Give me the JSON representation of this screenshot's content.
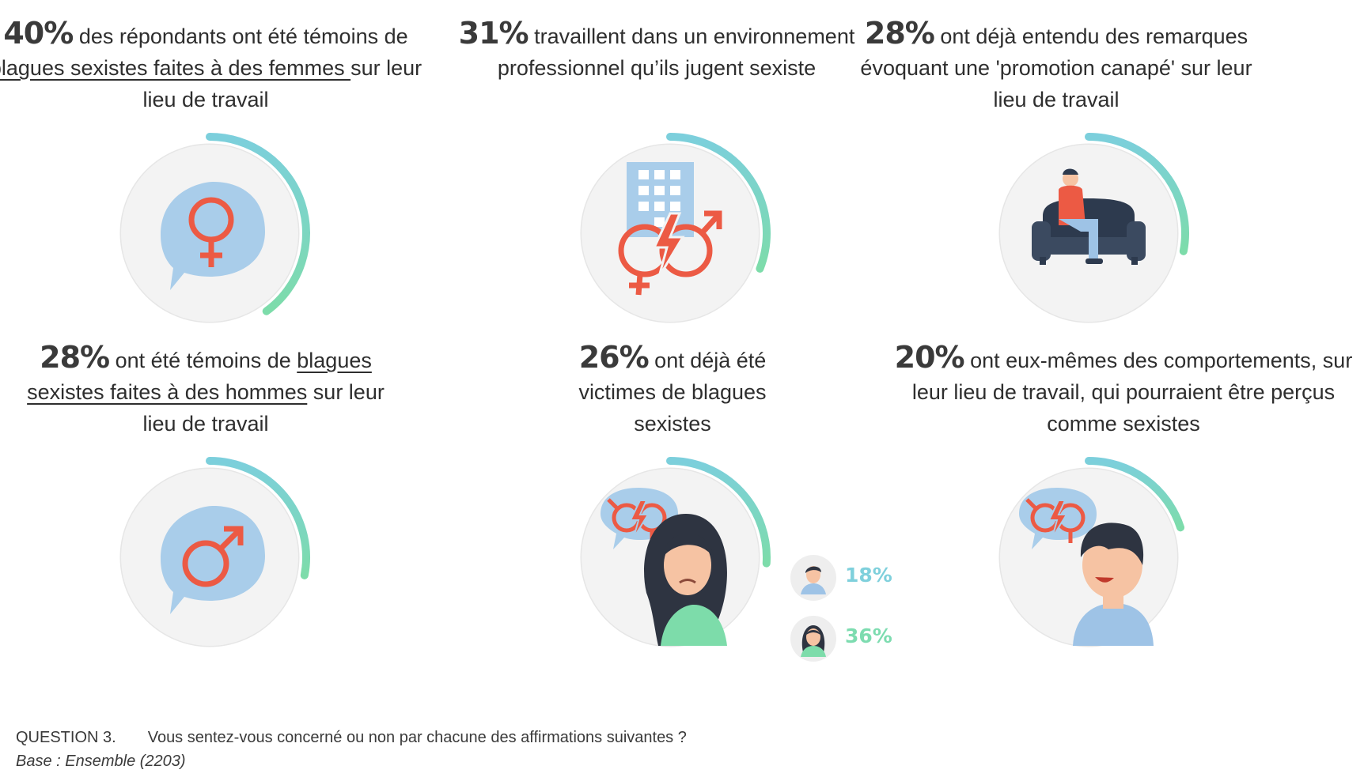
{
  "chart_data": {
    "type": "progress-ring",
    "items": [
      {
        "value": 40,
        "percent_label": "40%",
        "text_parts": [
          " des répondants ont été témoins de ",
          "blagues sexistes faites à des femmes ",
          "sur leur lieu de travail"
        ],
        "icon": "female-symbol-speech-bubble-icon"
      },
      {
        "value": 31,
        "percent_label": "31%",
        "text_parts": [
          " travaillent dans un environnement professionnel qu’ils jugent sexiste"
        ],
        "icon": "building-gender-conflict-icon"
      },
      {
        "value": 28,
        "percent_label": "28%",
        "text_parts": [
          " ont déjà entendu des remarques évoquant une 'promotion canapé' sur leur lieu de travail"
        ],
        "icon": "man-on-couch-icon"
      },
      {
        "value": 28,
        "percent_label": "28%",
        "text_parts": [
          " ont été témoins de ",
          "blagues sexistes faites à des hommes",
          " sur leur lieu de travail"
        ],
        "icon": "male-symbol-speech-bubble-icon"
      },
      {
        "value": 26,
        "percent_label": "26%",
        "text_parts": [
          " ont déjà été victimes de blagues sexistes"
        ],
        "icon": "sad-woman-speech-bubble-icon",
        "breakdown": [
          {
            "group": "men",
            "value": 18,
            "label": "18%",
            "color": "#7fd0dc",
            "icon": "man-avatar-icon"
          },
          {
            "group": "women",
            "value": 36,
            "label": "36%",
            "color": "#7ddcb0",
            "icon": "woman-avatar-icon"
          }
        ]
      },
      {
        "value": 20,
        "percent_label": "20%",
        "text_parts": [
          " ont eux-mêmes des comportements, sur leur lieu de travail, qui pourraient être perçus comme sexistes"
        ],
        "icon": "smiling-man-speech-bubble-icon"
      }
    ],
    "colors": {
      "ring_start": "#7ccfdc",
      "ring_end": "#7ddcaa",
      "track": "#e6e6e6",
      "accent": "#ec5a44",
      "bubble": "#a9cdea"
    }
  },
  "footer": {
    "question_label": "QUESTION 3.",
    "question_text": "Vous sentez-vous concerné ou non par chacune des affirmations suivantes ?",
    "base": "Base : Ensemble (2203)"
  }
}
